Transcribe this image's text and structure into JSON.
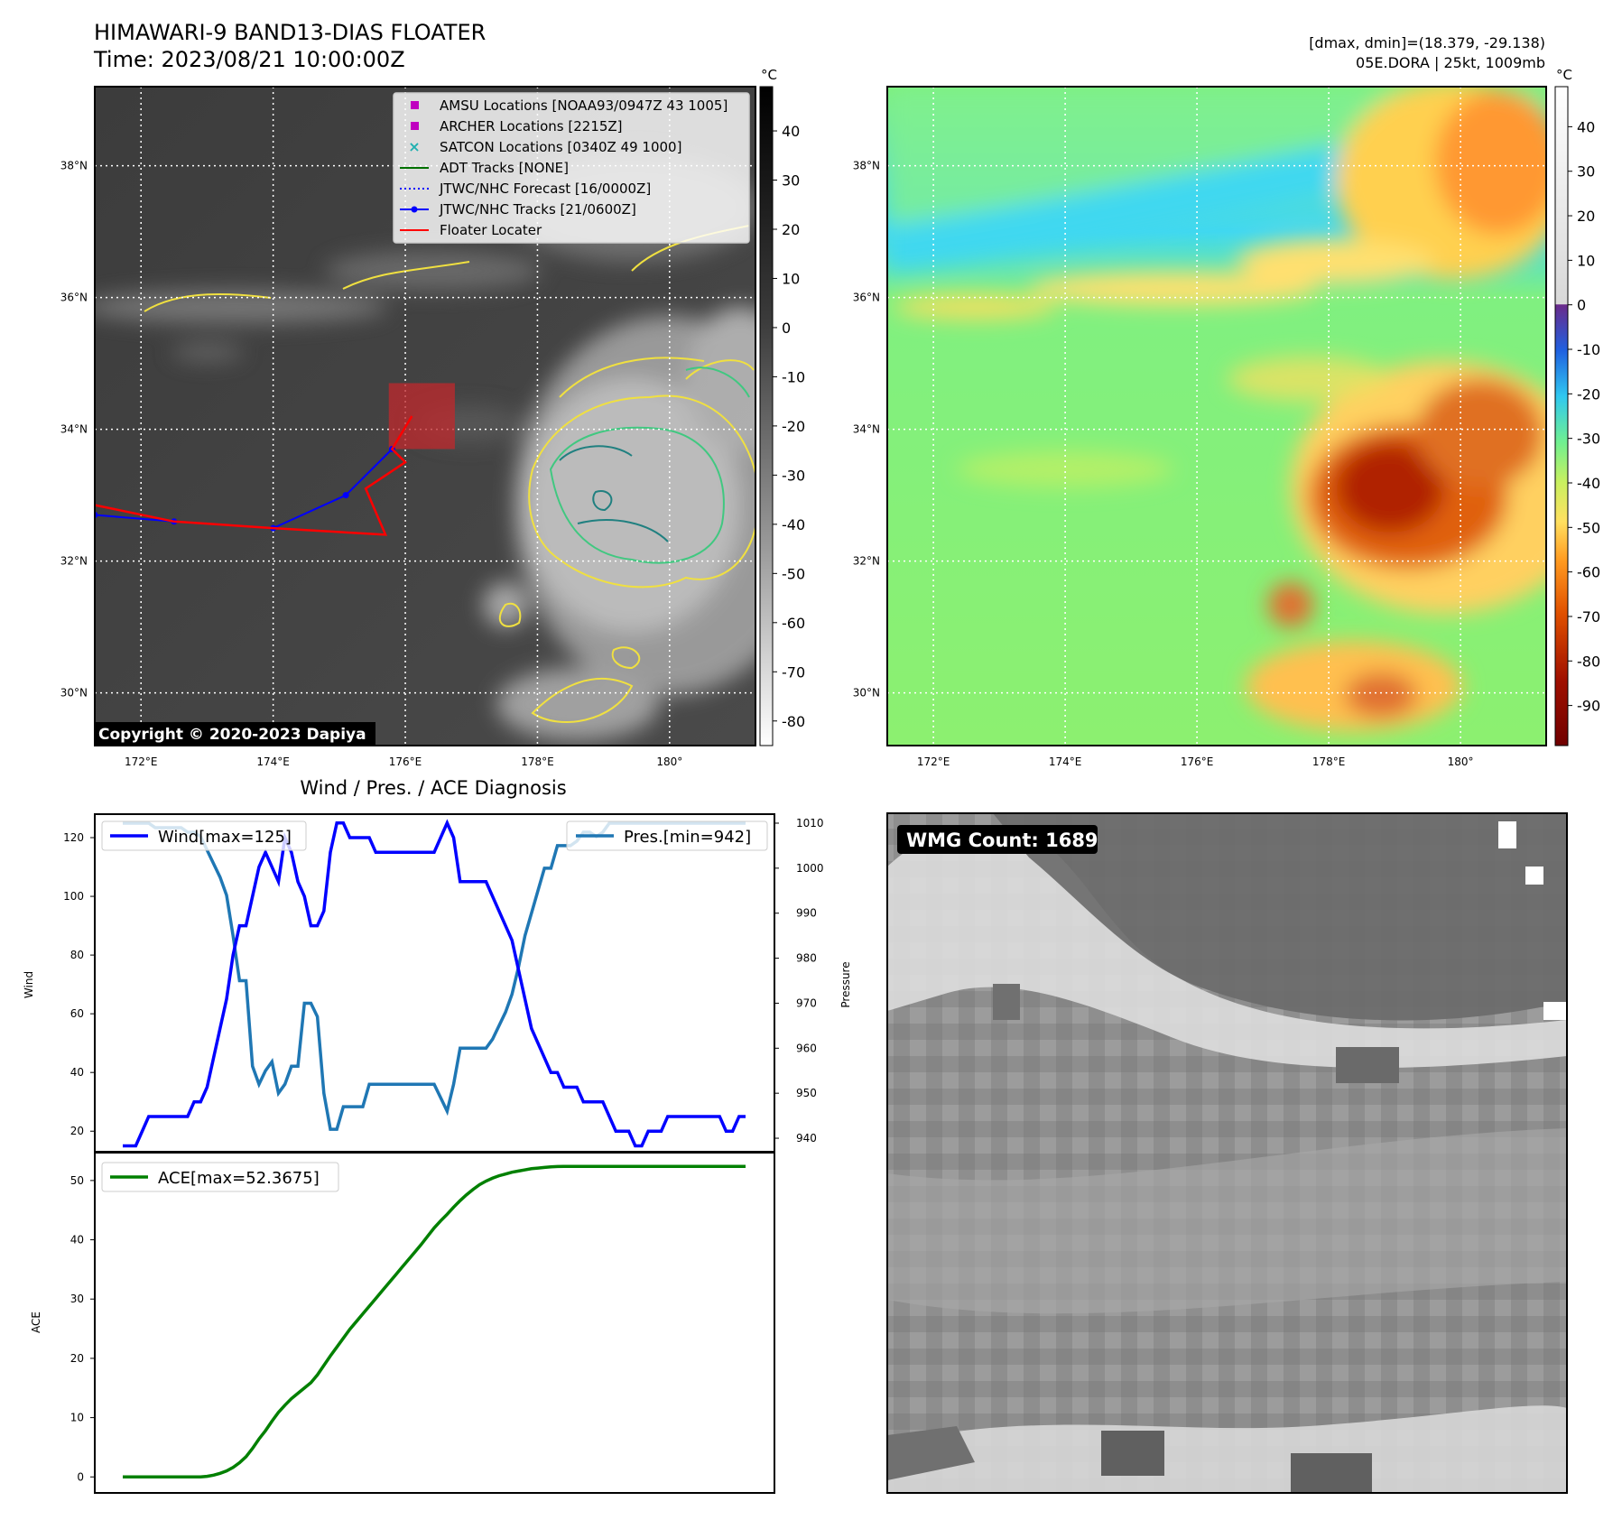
{
  "header": {
    "title": "HIMAWARI-9 BAND13-DIAS FLOATER",
    "time": "Time: 2023/08/21 10:00:00Z",
    "dmax_dmin": "[dmax, dmin]=(18.379, -29.138)",
    "storm": "05E.DORA | 25kt, 1009mb"
  },
  "map": {
    "lat_labels": [
      "38°N",
      "36°N",
      "34°N",
      "32°N",
      "30°N"
    ],
    "lat_values": [
      38,
      36,
      34,
      32,
      30
    ],
    "lon_labels": [
      "172°E",
      "174°E",
      "176°E",
      "178°E",
      "180°"
    ],
    "lon_values": [
      172,
      174,
      176,
      178,
      180
    ],
    "lon_range": [
      171.3,
      181.3
    ],
    "lat_range": [
      29.2,
      39.2
    ],
    "copyright": "Copyright © 2020-2023 Dapiya",
    "legend": [
      {
        "label": "AMSU Locations [NOAA93/0947Z 43 1005]",
        "color": "#c000c0",
        "kind": "square"
      },
      {
        "label": "ARCHER Locations [2215Z]",
        "color": "#c000c0",
        "kind": "square"
      },
      {
        "label": "SATCON Locations [0340Z 49 1000]",
        "color": "#20b0b0",
        "kind": "x"
      },
      {
        "label": "ADT Tracks [NONE]",
        "color": "#007000",
        "kind": "line"
      },
      {
        "label": "JTWC/NHC Forecast [16/0000Z]",
        "color": "#0000ff",
        "kind": "dotted"
      },
      {
        "label": "JTWC/NHC Tracks [21/0600Z]",
        "color": "#0000ff",
        "kind": "line-dot"
      },
      {
        "label": "Floater Locater",
        "color": "#ff0000",
        "kind": "line"
      }
    ],
    "jtwc_track": [
      [
        171.3,
        32.7
      ],
      [
        172.5,
        32.6
      ],
      [
        174.0,
        32.5
      ],
      [
        175.1,
        33.0
      ],
      [
        175.8,
        33.7
      ]
    ],
    "floater_track": [
      [
        171.3,
        32.85
      ],
      [
        172.5,
        32.6
      ],
      [
        174.0,
        32.5
      ],
      [
        175.7,
        32.4
      ],
      [
        175.4,
        33.1
      ],
      [
        176.0,
        33.5
      ],
      [
        175.8,
        33.7
      ],
      [
        176.1,
        34.2
      ]
    ],
    "floater_box": {
      "lon": [
        175.75,
        176.75
      ],
      "lat": [
        33.7,
        34.7
      ]
    }
  },
  "colorbar_gray": {
    "unit": "°C",
    "ticks": [
      40,
      30,
      20,
      10,
      0,
      -10,
      -20,
      -30,
      -40,
      -50,
      -60,
      -70,
      -80
    ],
    "range": [
      -85,
      49
    ]
  },
  "colorbar_color": {
    "unit": "°C",
    "ticks": [
      40,
      30,
      20,
      10,
      0,
      -10,
      -20,
      -30,
      -40,
      -50,
      -60,
      -70,
      -80,
      -90
    ],
    "range": [
      -99,
      49
    ]
  },
  "wind_pres": {
    "title": "Wind / Pres. / ACE Diagnosis",
    "ylabel_left": "Wind",
    "ylabel_right": "Pressure",
    "wind_ticks": [
      20,
      40,
      60,
      80,
      100,
      120
    ],
    "pres_ticks": [
      940,
      950,
      960,
      970,
      980,
      990,
      1000,
      1010
    ],
    "wind_legend": "Wind[max=125]",
    "pres_legend": "Pres.[min=942]",
    "wind_color": "#0000ff",
    "pres_color": "#1f77b4"
  },
  "ace": {
    "ylabel": "ACE",
    "ticks": [
      0,
      10,
      20,
      30,
      40,
      50
    ],
    "legend": "ACE[max=52.3675]",
    "color": "#008000"
  },
  "wmg": {
    "label": "WMG Count: 1689"
  },
  "chart_data": [
    {
      "type": "line",
      "title": "Wind / Pres. / ACE Diagnosis",
      "ylabel": "Wind",
      "ylim": [
        13,
        128
      ],
      "series": [
        {
          "name": "Wind[max=125]",
          "values": [
            15,
            15,
            15,
            20,
            25,
            25,
            25,
            25,
            25,
            25,
            25,
            30,
            30,
            35,
            45,
            55,
            65,
            80,
            90,
            90,
            100,
            110,
            115,
            110,
            105,
            120,
            115,
            105,
            100,
            90,
            90,
            95,
            115,
            125,
            125,
            120,
            120,
            120,
            120,
            115,
            115,
            115,
            115,
            115,
            115,
            115,
            115,
            115,
            115,
            120,
            125,
            120,
            105,
            105,
            105,
            105,
            105,
            100,
            95,
            90,
            85,
            75,
            65,
            55,
            50,
            45,
            40,
            40,
            35,
            35,
            35,
            30,
            30,
            30,
            30,
            25,
            20,
            20,
            20,
            15,
            15,
            20,
            20,
            20,
            25,
            25,
            25,
            25,
            25,
            25,
            25,
            25,
            25,
            20,
            20,
            25,
            25
          ]
        }
      ]
    },
    {
      "type": "line",
      "ylabel": "Pressure",
      "ylim": [
        937,
        1012
      ],
      "series": [
        {
          "name": "Pres.[min=942]",
          "values": [
            1010,
            1010,
            1010,
            1010,
            1010,
            1009,
            1009,
            1009,
            1009,
            1009,
            1008,
            1008,
            1007,
            1004,
            1001,
            998,
            994,
            985,
            975,
            975,
            956,
            952,
            955,
            957,
            950,
            952,
            956,
            956,
            970,
            970,
            967,
            950,
            942,
            942,
            947,
            947,
            947,
            947,
            952,
            952,
            952,
            952,
            952,
            952,
            952,
            952,
            952,
            952,
            952,
            949,
            946,
            952,
            960,
            960,
            960,
            960,
            960,
            962,
            965,
            968,
            972,
            978,
            985,
            990,
            995,
            1000,
            1000,
            1005,
            1005,
            1005,
            1006,
            1008,
            1008,
            1007,
            1008,
            1010,
            1010,
            1010,
            1010,
            1010,
            1010,
            1010,
            1010,
            1010,
            1010,
            1010,
            1010,
            1010,
            1010,
            1010,
            1010,
            1010,
            1010,
            1010,
            1010,
            1010,
            1010
          ]
        }
      ]
    },
    {
      "type": "area",
      "ylabel": "ACE",
      "ylim": [
        -2.7,
        54.7
      ],
      "series": [
        {
          "name": "ACE[max=52.3675]",
          "values": [
            0.0,
            0.0,
            0.0,
            0.0,
            0.0,
            0.0,
            0.0,
            0.0,
            0.0,
            0.0,
            0.0,
            0.0,
            0.0,
            0.1,
            0.3,
            0.6,
            1.0,
            1.6,
            2.4,
            3.4,
            4.8,
            6.4,
            7.8,
            9.4,
            10.9,
            12.1,
            13.2,
            14.1,
            15.0,
            15.9,
            17.2,
            18.8,
            20.4,
            21.9,
            23.4,
            24.9,
            26.2,
            27.5,
            28.8,
            30.1,
            31.4,
            32.7,
            34.0,
            35.3,
            36.6,
            37.9,
            39.2,
            40.6,
            42.0,
            43.2,
            44.3,
            45.5,
            46.6,
            47.6,
            48.5,
            49.3,
            49.9,
            50.4,
            50.8,
            51.1,
            51.4,
            51.6,
            51.8,
            52.0,
            52.1,
            52.2,
            52.3,
            52.35,
            52.37,
            52.37,
            52.37,
            52.37,
            52.37,
            52.37,
            52.37,
            52.37,
            52.37,
            52.37,
            52.37,
            52.37,
            52.37,
            52.37,
            52.37,
            52.37,
            52.37,
            52.37,
            52.37,
            52.37,
            52.37,
            52.37,
            52.37,
            52.37,
            52.37,
            52.37,
            52.37,
            52.37,
            52.37
          ]
        }
      ]
    }
  ]
}
